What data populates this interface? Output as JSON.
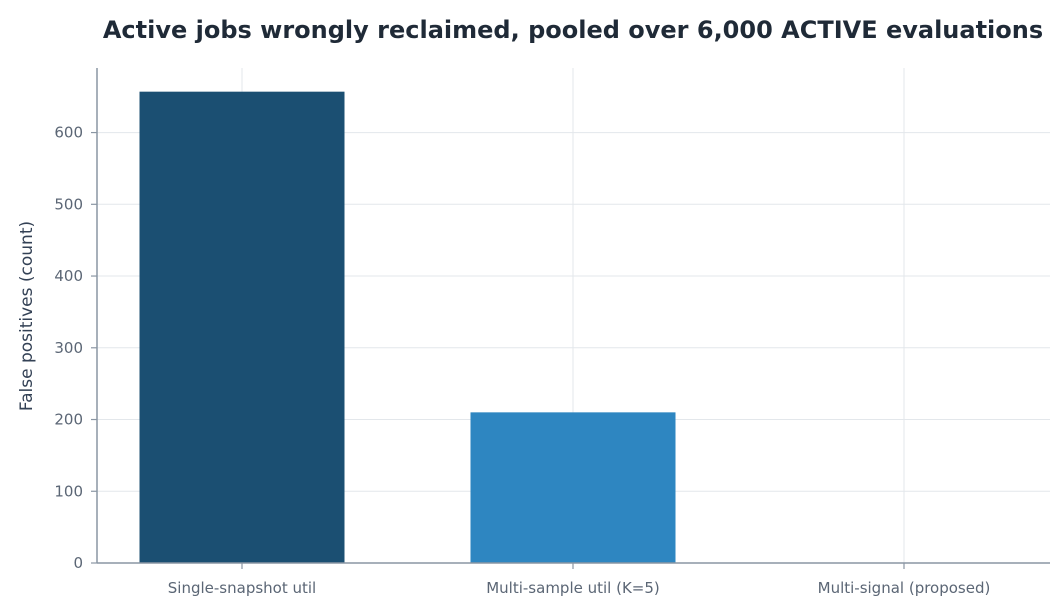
{
  "chart_data": {
    "type": "bar",
    "title": "Active jobs wrongly reclaimed, pooled over 6,000 ACTIVE evaluations",
    "xlabel": "",
    "ylabel": "False positives (count)",
    "categories": [
      "Single-snapshot util",
      "Multi-sample util (K=5)",
      "Multi-signal (proposed)"
    ],
    "values": [
      657,
      210,
      0
    ],
    "colors": [
      "#1b4f72",
      "#2e86c1",
      "#5dade2"
    ],
    "ylim": [
      0,
      690
    ],
    "yticks": [
      0,
      100,
      200,
      300,
      400,
      500,
      600
    ],
    "grid": true,
    "legend": "none"
  }
}
